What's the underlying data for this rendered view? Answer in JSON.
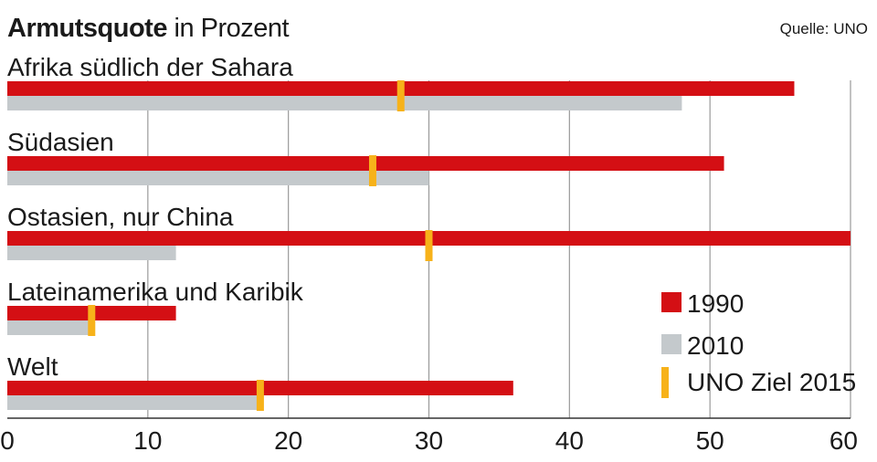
{
  "header": {
    "title_bold": "Armutsquote",
    "title_rest": " in Prozent",
    "source": "Quelle: UNO"
  },
  "colors": {
    "series_1990": "#d40f14",
    "series_2010": "#c4c9cc",
    "target": "#f7b21a",
    "grid": "#9a9a9a"
  },
  "chart_data": {
    "type": "bar",
    "orientation": "horizontal",
    "title": "Armutsquote in Prozent",
    "categories": [
      "Afrika südlich der Sahara",
      "Südasien",
      "Ostasien, nur China",
      "Lateinamerika und Karibik",
      "Welt"
    ],
    "series": [
      {
        "name": "1990",
        "values": [
          56,
          51,
          60,
          12,
          36
        ]
      },
      {
        "name": "2010",
        "values": [
          48,
          30,
          12,
          6,
          18
        ]
      }
    ],
    "target": {
      "name": "UNO Ziel 2015",
      "values": [
        28,
        26,
        30,
        6,
        18
      ]
    },
    "xlim": [
      0,
      60
    ],
    "xticks": [
      0,
      10,
      20,
      30,
      40,
      50,
      60
    ],
    "grid": true,
    "legend_position": "bottom-right"
  }
}
